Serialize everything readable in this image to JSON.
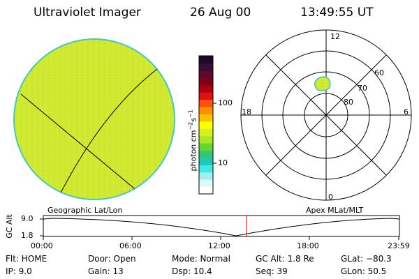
{
  "header": {
    "instrument": "Ultraviolet Imager",
    "date": "26 Aug 00",
    "time": "13:49:55 UT"
  },
  "colorbar": {
    "unit_label": "photon cm",
    "unit_exp1": "−2",
    "unit_mid": "s",
    "unit_exp2": "−1",
    "tick_100": "100",
    "tick_10": "10",
    "colors": [
      "#1a0a28",
      "#3a0a3a",
      "#5a0a2a",
      "#800018",
      "#b00010",
      "#e01010",
      "#ff5010",
      "#ff9000",
      "#ffc000",
      "#ffff00",
      "#d8f020",
      "#a8e820",
      "#60d830",
      "#30c870",
      "#20c8b8",
      "#40e8e0",
      "#a0f0f0",
      "#e0f8f8",
      "#ffffff"
    ]
  },
  "polar": {
    "top_label": "12",
    "bottom_label": "0",
    "left_label": "18",
    "right_label": "6",
    "lat_60": "60",
    "lat_70": "70",
    "lat_80": "80"
  },
  "panel_labels": {
    "left": "Geographic Lat/Lon",
    "right": "Apex MLat/MLT"
  },
  "timeline": {
    "y_label": "GC Alt",
    "y_max": "9.0",
    "y_min": "1.8",
    "x_ticks": [
      "00:00",
      "06:00",
      "12:00",
      "18:00",
      "23:59"
    ],
    "marker_color": "#e00000"
  },
  "status": {
    "filter": "Flt: HOME",
    "ip": "IP:  9.0",
    "door": "Door: Open",
    "gain": "Gain: 13",
    "mode": "Mode: Normal",
    "dsp": "Dsp:   10.4",
    "gc_alt": "GC Alt: 1.8 Re",
    "seq": "Seq: 39",
    "glat": "GLat: −80.3",
    "glon": "GLon:  50.5"
  },
  "image_color": "#ccee33"
}
